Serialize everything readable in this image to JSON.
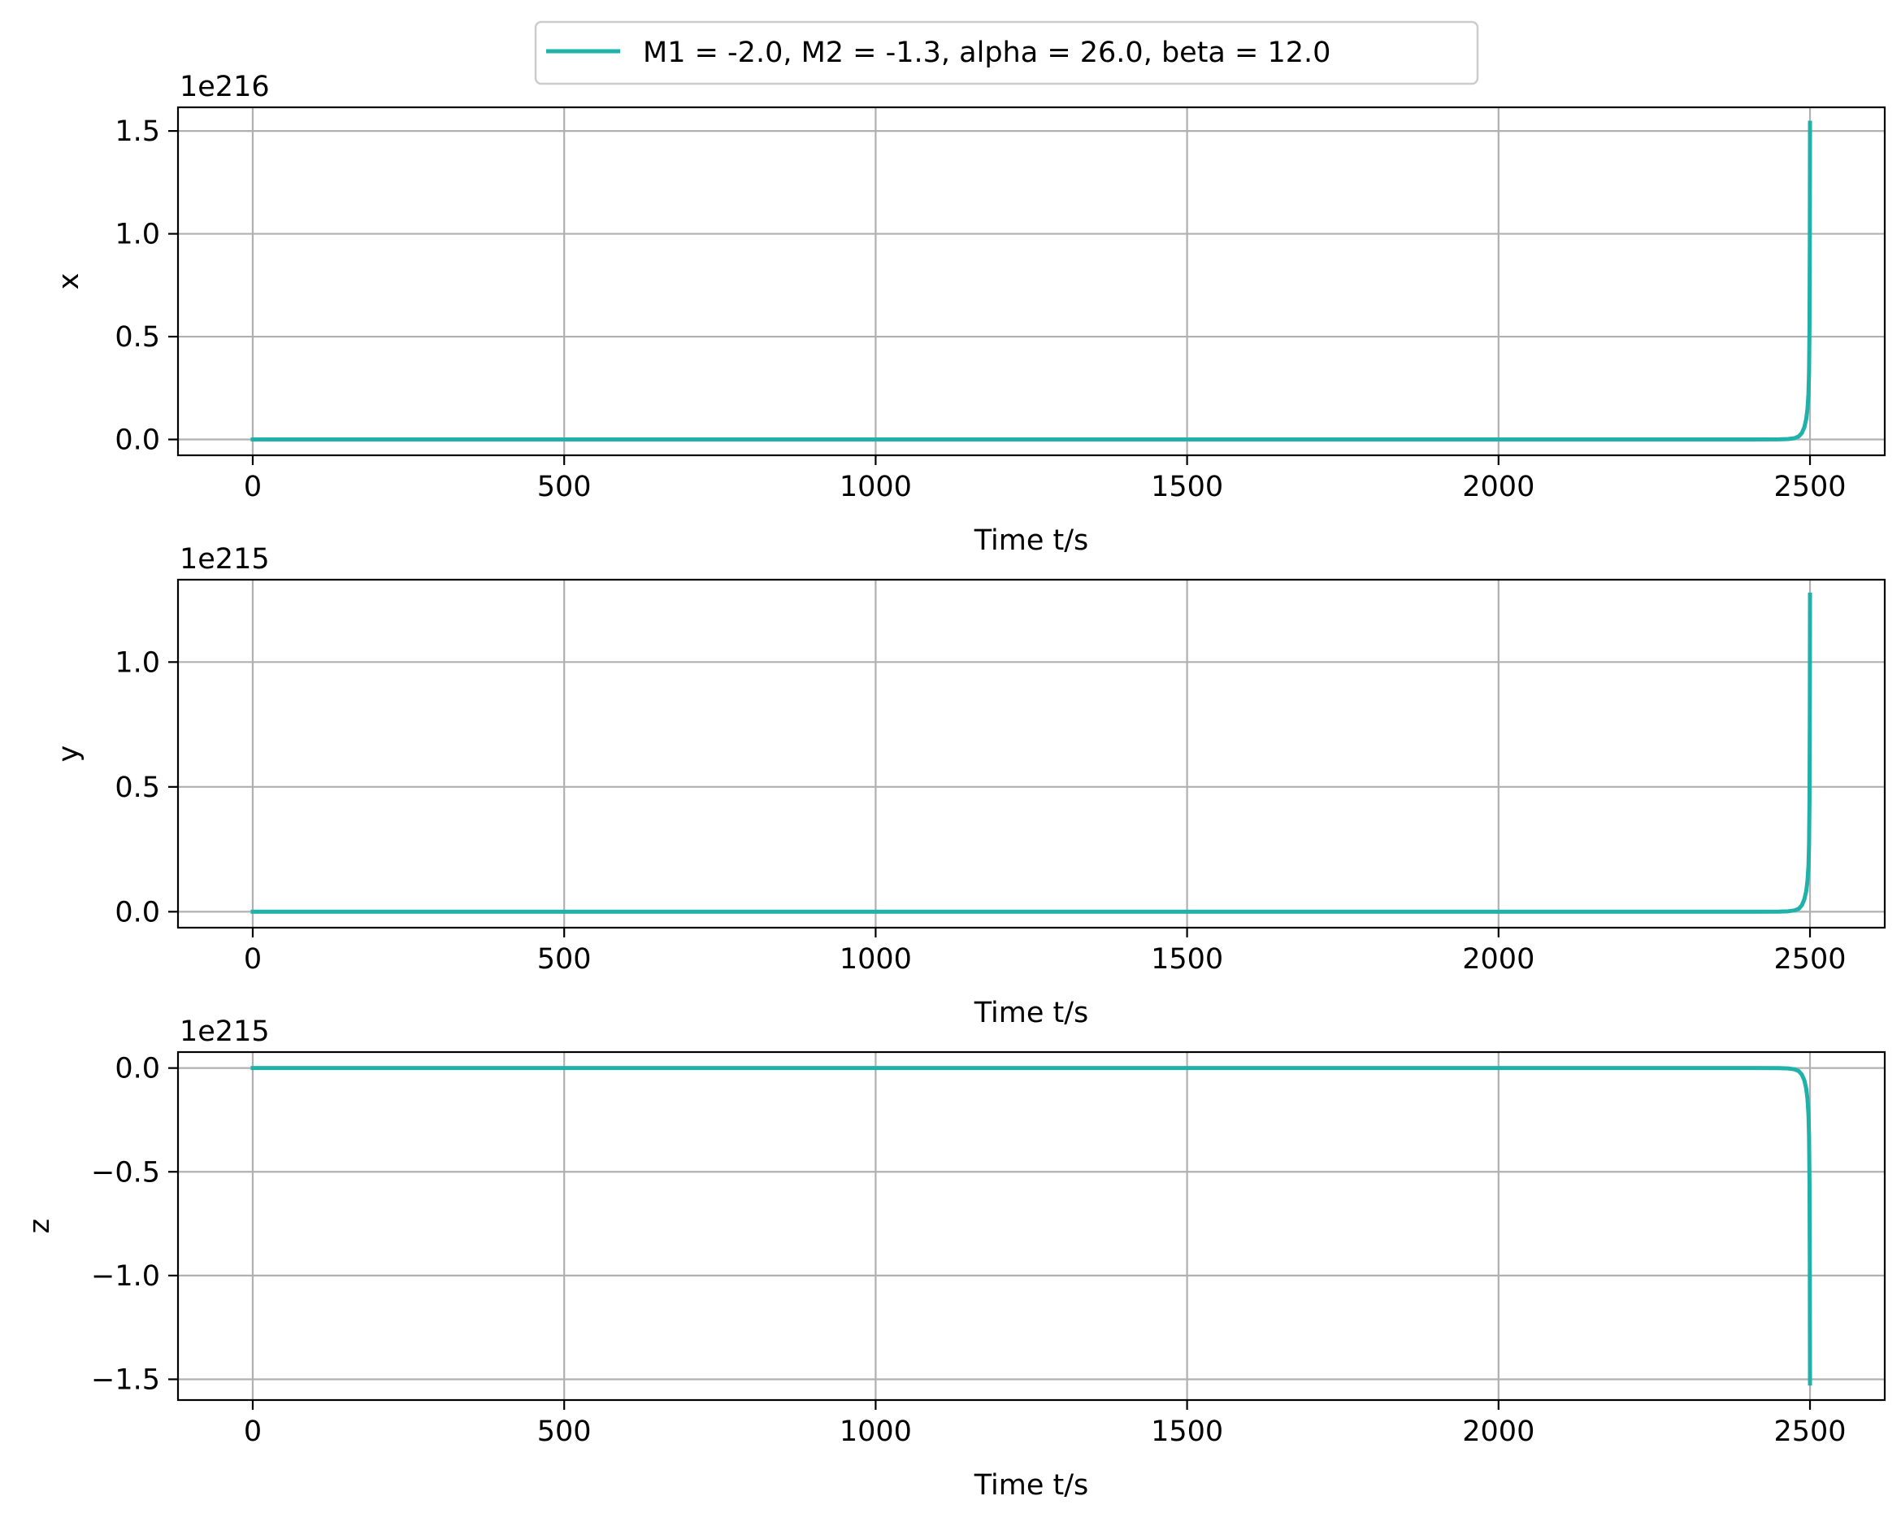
{
  "legend": {
    "entries": [
      "M1 = -2.0, M2 = -1.3, alpha = 26.0, beta = 12.0"
    ],
    "placement": "top-center",
    "line_color": "#20b2aa"
  },
  "chart_data": [
    {
      "type": "line",
      "xlabel": "Time t/s",
      "ylabel": "x",
      "offset_text": "1e216",
      "xlim": [
        -120,
        2620
      ],
      "ylim": [
        -0.077,
        1.615
      ],
      "xticks": [
        0,
        500,
        1000,
        1500,
        2000,
        2500
      ],
      "xtick_labels": [
        "0",
        "500",
        "1000",
        "1500",
        "2000",
        "2500"
      ],
      "yticks": [
        0.0,
        0.5,
        1.0,
        1.5
      ],
      "ytick_labels": [
        "0.0",
        "0.5",
        "1.0",
        "1.5"
      ],
      "grid": true,
      "series": [
        {
          "color": "#20b2aa",
          "x": [
            0,
            500,
            1000,
            1500,
            2000,
            2400,
            2450,
            2465,
            2475,
            2482,
            2487,
            2491,
            2494,
            2496,
            2497.5,
            2498.5,
            2499.2,
            2499.7,
            2500
          ],
          "y": [
            0,
            0,
            0,
            0,
            0,
            0,
            0.0005,
            0.002,
            0.006,
            0.015,
            0.032,
            0.06,
            0.1,
            0.15,
            0.22,
            0.33,
            0.55,
            0.95,
            1.54
          ]
        }
      ]
    },
    {
      "type": "line",
      "xlabel": "Time t/s",
      "ylabel": "y",
      "offset_text": "1e215",
      "xlim": [
        -120,
        2620
      ],
      "ylim": [
        -0.064,
        1.33
      ],
      "xticks": [
        0,
        500,
        1000,
        1500,
        2000,
        2500
      ],
      "xtick_labels": [
        "0",
        "500",
        "1000",
        "1500",
        "2000",
        "2500"
      ],
      "yticks": [
        0.0,
        0.5,
        1.0
      ],
      "ytick_labels": [
        "0.0",
        "0.5",
        "1.0"
      ],
      "grid": true,
      "series": [
        {
          "color": "#20b2aa",
          "x": [
            0,
            500,
            1000,
            1500,
            2000,
            2400,
            2450,
            2465,
            2475,
            2482,
            2487,
            2491,
            2494,
            2496,
            2497.5,
            2498.5,
            2499.2,
            2499.7,
            2500
          ],
          "y": [
            0,
            0,
            0,
            0,
            0,
            0,
            0.0004,
            0.0017,
            0.005,
            0.012,
            0.026,
            0.05,
            0.083,
            0.125,
            0.18,
            0.27,
            0.45,
            0.78,
            1.27
          ]
        }
      ]
    },
    {
      "type": "line",
      "xlabel": "Time t/s",
      "ylabel": "z",
      "offset_text": "1e215",
      "xlim": [
        -120,
        2620
      ],
      "ylim": [
        -1.6,
        0.077
      ],
      "xticks": [
        0,
        500,
        1000,
        1500,
        2000,
        2500
      ],
      "xtick_labels": [
        "0",
        "500",
        "1000",
        "1500",
        "2000",
        "2500"
      ],
      "yticks": [
        -1.5,
        -1.0,
        -0.5,
        0.0
      ],
      "ytick_labels": [
        "−1.5",
        "−1.0",
        "−0.5",
        "0.0"
      ],
      "grid": true,
      "series": [
        {
          "color": "#20b2aa",
          "x": [
            0,
            500,
            1000,
            1500,
            2000,
            2400,
            2450,
            2465,
            2475,
            2482,
            2487,
            2491,
            2494,
            2496,
            2497.5,
            2498.5,
            2499.2,
            2499.7,
            2500
          ],
          "y": [
            0,
            0,
            0,
            0,
            0,
            0,
            -0.0005,
            -0.002,
            -0.006,
            -0.015,
            -0.032,
            -0.06,
            -0.1,
            -0.15,
            -0.22,
            -0.33,
            -0.55,
            -0.95,
            -1.52
          ]
        }
      ]
    }
  ]
}
